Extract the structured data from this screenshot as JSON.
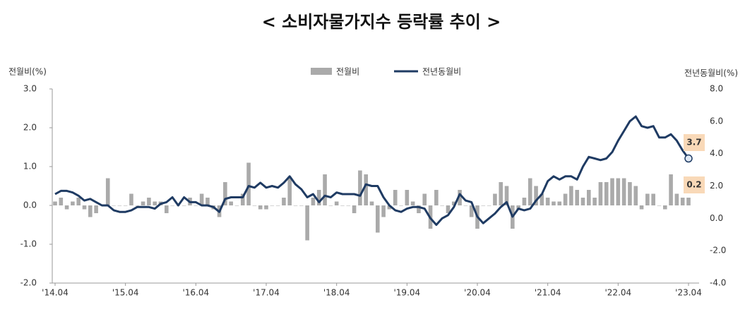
{
  "chart_data": {
    "type": "bar-line",
    "title": "< 소비자물가지수 등락률 추이 >",
    "y_label": "전월비(%)",
    "y2_label": "전년동월비(%)",
    "categories": [
      "'14.04",
      null,
      null,
      null,
      null,
      null,
      null,
      null,
      null,
      null,
      null,
      null,
      "'15.04",
      null,
      null,
      null,
      null,
      null,
      null,
      null,
      null,
      null,
      null,
      null,
      "'16.04",
      null,
      null,
      null,
      null,
      null,
      null,
      null,
      null,
      null,
      null,
      null,
      "'17.04",
      null,
      null,
      null,
      null,
      null,
      null,
      null,
      null,
      null,
      null,
      null,
      "'18.04",
      null,
      null,
      null,
      null,
      null,
      null,
      null,
      null,
      null,
      null,
      null,
      "'19.04",
      null,
      null,
      null,
      null,
      null,
      null,
      null,
      null,
      null,
      null,
      null,
      "'20.04",
      null,
      null,
      null,
      null,
      null,
      null,
      null,
      null,
      null,
      null,
      null,
      "'21.04",
      null,
      null,
      null,
      null,
      null,
      null,
      null,
      null,
      null,
      null,
      null,
      "'22.04",
      null,
      null,
      null,
      null,
      null,
      null,
      null,
      null,
      null,
      null,
      null,
      "'23.04"
    ],
    "series": [
      {
        "name": "전월비",
        "type": "bar",
        "color": "#aaaaaa",
        "values": [
          0.1,
          0.2,
          -0.1,
          0.1,
          0.2,
          -0.1,
          -0.3,
          -0.2,
          0.0,
          0.7,
          0.0,
          0.0,
          0.0,
          0.3,
          0.0,
          0.1,
          0.2,
          0.1,
          0.1,
          -0.2,
          0.0,
          0.0,
          0.0,
          0.2,
          0.0,
          0.3,
          0.2,
          -0.1,
          -0.3,
          0.6,
          0.1,
          0.0,
          0.3,
          1.1,
          0.0,
          -0.1,
          -0.1,
          0.0,
          0.0,
          0.2,
          0.7,
          0.0,
          0.0,
          -0.9,
          0.2,
          0.4,
          0.8,
          0.0,
          0.1,
          0.0,
          0.0,
          -0.2,
          0.9,
          0.8,
          0.1,
          -0.7,
          -0.3,
          -0.1,
          0.4,
          0.0,
          0.4,
          0.1,
          -0.2,
          0.3,
          -0.6,
          0.4,
          0.0,
          -0.2,
          0.1,
          0.4,
          0.0,
          -0.3,
          -0.6,
          0.0,
          0.0,
          0.3,
          0.6,
          0.5,
          -0.6,
          -0.1,
          0.2,
          0.7,
          0.5,
          0.3,
          0.2,
          0.1,
          0.1,
          0.3,
          0.5,
          0.4,
          0.2,
          0.4,
          0.2,
          0.6,
          0.6,
          0.7,
          0.7,
          0.7,
          0.6,
          0.5,
          -0.1,
          0.3,
          0.3,
          0.0,
          -0.1,
          0.8,
          0.3,
          0.2,
          0.2
        ]
      },
      {
        "name": "전년동월비",
        "type": "line",
        "axis": "y2",
        "color": "#1f3b63",
        "values": [
          1.5,
          1.7,
          1.7,
          1.6,
          1.4,
          1.1,
          1.2,
          1.0,
          0.8,
          0.8,
          0.5,
          0.4,
          0.4,
          0.5,
          0.7,
          0.7,
          0.7,
          0.6,
          0.9,
          1.0,
          1.3,
          0.8,
          1.3,
          1.0,
          1.0,
          0.8,
          0.8,
          0.7,
          0.4,
          1.2,
          1.3,
          1.3,
          1.3,
          2.0,
          1.9,
          2.2,
          1.9,
          2.0,
          1.9,
          2.2,
          2.6,
          2.1,
          1.8,
          1.3,
          1.5,
          1.0,
          1.4,
          1.3,
          1.6,
          1.5,
          1.5,
          1.5,
          1.4,
          2.1,
          2.0,
          2.0,
          1.3,
          0.8,
          0.5,
          0.4,
          0.6,
          0.7,
          0.7,
          0.6,
          0.0,
          -0.4,
          0.0,
          0.2,
          0.7,
          1.5,
          1.1,
          1.0,
          0.1,
          -0.3,
          0.0,
          0.3,
          0.7,
          1.0,
          0.1,
          0.6,
          0.5,
          0.6,
          1.1,
          1.5,
          2.3,
          2.6,
          2.4,
          2.6,
          2.6,
          2.4,
          3.2,
          3.8,
          3.7,
          3.6,
          3.7,
          4.1,
          4.8,
          5.4,
          6.0,
          6.3,
          5.7,
          5.6,
          5.7,
          5.0,
          5.0,
          5.2,
          4.8,
          4.2,
          3.7
        ]
      }
    ],
    "ylim": [
      -2,
      3
    ],
    "yticks": [
      {
        "value": -2,
        "label": "-2.0"
      },
      {
        "value": -1,
        "label": "-1.0"
      },
      {
        "value": 0,
        "label": "0.0"
      },
      {
        "value": 1,
        "label": "1.0"
      },
      {
        "value": 2,
        "label": "2.0"
      },
      {
        "value": 3,
        "label": "3.0"
      }
    ],
    "y2lim": [
      -4,
      8
    ],
    "y2ticks": [
      {
        "value": -4,
        "label": "-4.0"
      },
      {
        "value": -2,
        "label": "-2.0"
      },
      {
        "value": 0,
        "label": "0.0"
      },
      {
        "value": 2,
        "label": "2.0"
      },
      {
        "value": 4,
        "label": "4.0"
      },
      {
        "value": 6,
        "label": "6.0"
      },
      {
        "value": 8,
        "label": "8.0"
      }
    ],
    "legend": "top"
  }
}
